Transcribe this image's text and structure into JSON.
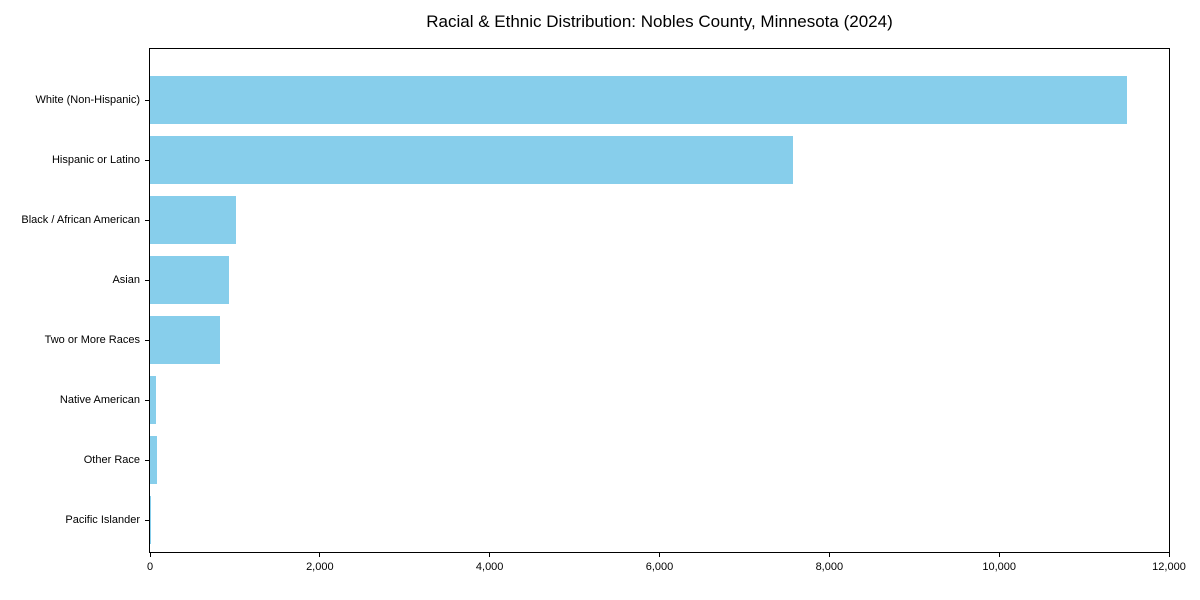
{
  "chart_data": {
    "type": "bar",
    "orientation": "horizontal",
    "title": "Racial & Ethnic Distribution: Nobles County, Minnesota (2024)",
    "categories": [
      "White (Non-Hispanic)",
      "Hispanic or Latino",
      "Black / African American",
      "Asian",
      "Two or More Races",
      "Native American",
      "Other Race",
      "Pacific Islander"
    ],
    "values": [
      11500,
      7570,
      1010,
      930,
      820,
      70,
      80,
      10
    ],
    "xlabel": "",
    "ylabel": "",
    "xlim": [
      0,
      12000
    ],
    "x_tick_values": [
      0,
      2000,
      4000,
      6000,
      8000,
      10000,
      12000
    ],
    "x_tick_labels": [
      "0",
      "2,000",
      "4,000",
      "6,000",
      "8,000",
      "10,000",
      "12,000"
    ],
    "bar_color": "#87CEEB",
    "frame_color": "#000000",
    "background_color": "#ffffff",
    "grid": false,
    "legend": null
  }
}
